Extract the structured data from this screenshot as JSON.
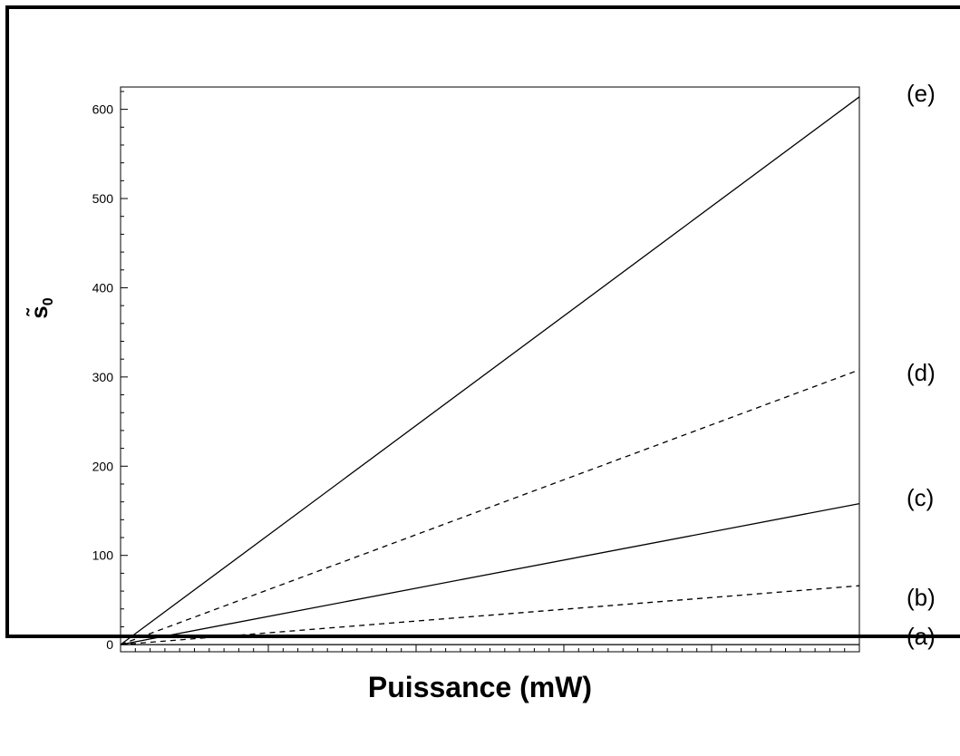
{
  "chart_data": {
    "type": "line",
    "xlabel": "Puissance (mW)",
    "ylabel": "s̃",
    "ylabel_subscript": "0",
    "xlim": [
      0,
      100
    ],
    "ylim": [
      -8,
      625
    ],
    "xticks": [
      20,
      40,
      60,
      80,
      100
    ],
    "yticks": [
      0,
      100,
      200,
      300,
      400,
      500,
      600
    ],
    "grid": false,
    "series": [
      {
        "name": "(a)",
        "style": "solid",
        "x": [
          0,
          100
        ],
        "y": [
          0,
          0
        ]
      },
      {
        "name": "(b)",
        "style": "dashed",
        "x": [
          0,
          100
        ],
        "y": [
          0,
          66
        ]
      },
      {
        "name": "(c)",
        "style": "solid",
        "x": [
          0,
          100
        ],
        "y": [
          0,
          158
        ]
      },
      {
        "name": "(d)",
        "style": "dashed",
        "x": [
          0,
          100
        ],
        "y": [
          0,
          308
        ]
      },
      {
        "name": "(e)",
        "style": "solid",
        "x": [
          0,
          100
        ],
        "y": [
          0,
          614
        ]
      }
    ]
  }
}
